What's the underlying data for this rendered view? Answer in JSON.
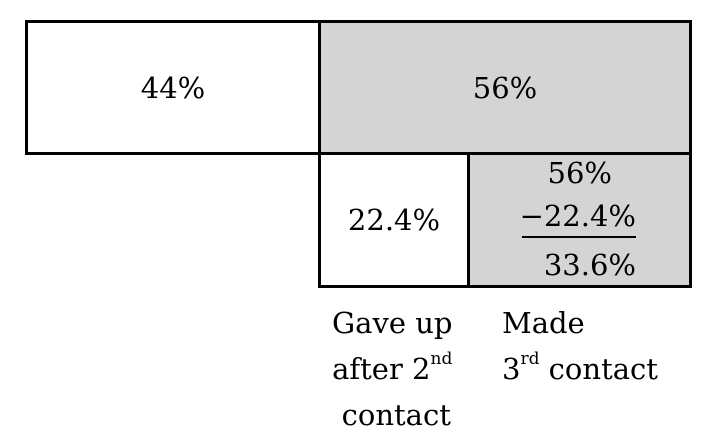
{
  "diagram": {
    "total_left": "44%",
    "total_right": "56%",
    "sub_left": "22.4%",
    "subtraction": {
      "line1": "56%",
      "line2": "−22.4%",
      "result": "33.6%"
    },
    "labels": {
      "left": {
        "line1": "Gave up",
        "line2_main": "after 2",
        "line2_sup": "nd",
        "line3": "contact"
      },
      "right": {
        "line1": "Made",
        "line2_main": "3",
        "line2_sup": "rd",
        "line2_rest": " contact"
      }
    }
  },
  "colors": {
    "shaded": "#d4d4d4",
    "unshaded": "#ffffff",
    "border": "#000000"
  }
}
